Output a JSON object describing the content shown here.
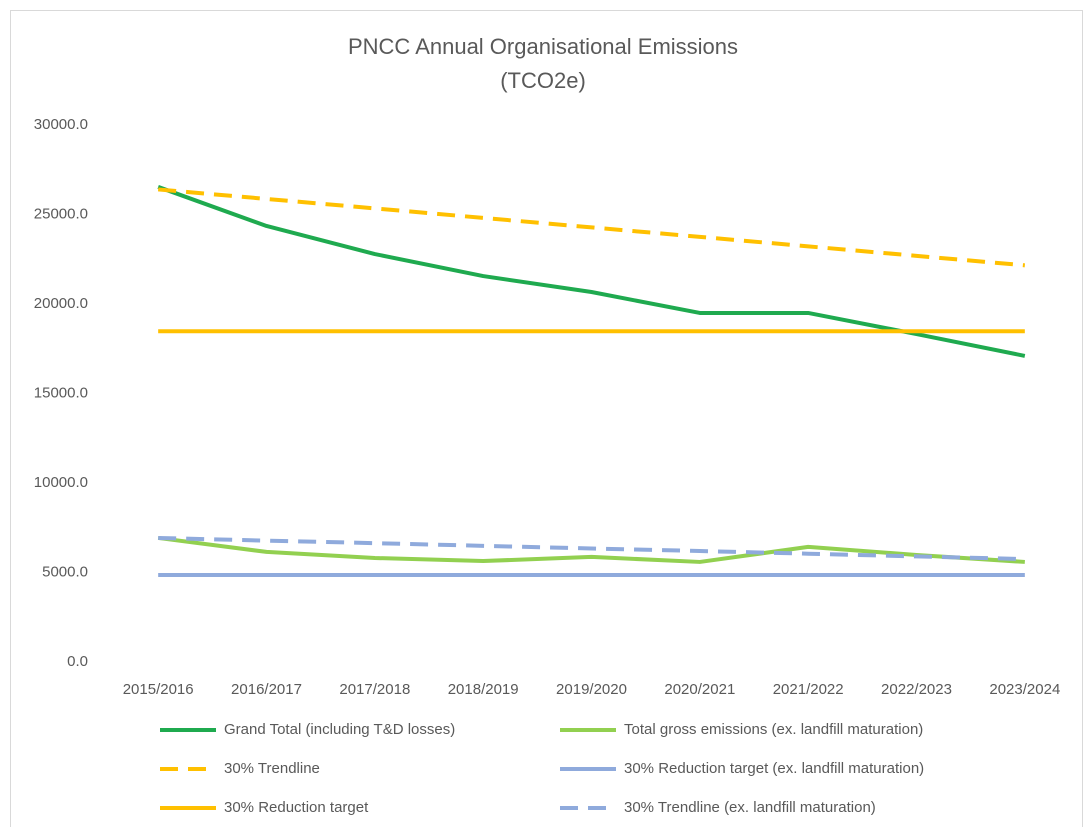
{
  "chart_data": {
    "type": "line",
    "title": [
      "PNCC Annual Organisational Emissions",
      "(TCO2e)"
    ],
    "categories": [
      "2015/2016",
      "2016/2017",
      "2017/2018",
      "2018/2019",
      "2019/2020",
      "2020/2021",
      "2021/2022",
      "2022/2023",
      "2023/2024"
    ],
    "series": [
      {
        "name": "Grand Total (including T&D losses)",
        "color": "#1faa4f",
        "dashed": false,
        "values": [
          26540,
          24360,
          22790,
          21560,
          20670,
          19500,
          19500,
          18320,
          17100
        ]
      },
      {
        "name": "Total gross emissions (ex. landfill maturation)",
        "color": "#92d050",
        "dashed": false,
        "values": [
          6930,
          6150,
          5810,
          5640,
          5870,
          5590,
          6430,
          5980,
          5590
        ]
      },
      {
        "name": "30% Trendline",
        "color": "#ffc000",
        "dashed": true,
        "values": [
          26400,
          25870,
          25340,
          24810,
          24280,
          23750,
          23220,
          22690,
          22160
        ]
      },
      {
        "name": "30% Reduction target (ex. landfill maturation)",
        "color": "#8faadc",
        "dashed": false,
        "values": [
          4860,
          4860,
          4860,
          4860,
          4860,
          4860,
          4860,
          4860,
          4860
        ]
      },
      {
        "name": "30% Reduction target",
        "color": "#ffc000",
        "dashed": false,
        "values": [
          18480,
          18480,
          18480,
          18480,
          18480,
          18480,
          18480,
          18480,
          18480
        ]
      },
      {
        "name": "30% Trendline (ex. landfill maturation)",
        "color": "#8faadc",
        "dashed": true,
        "values": [
          6930,
          6780,
          6640,
          6490,
          6340,
          6200,
          6050,
          5900,
          5750
        ]
      }
    ],
    "ylim": [
      0,
      30000
    ],
    "yticks": [
      {
        "value": 0,
        "label": "0.0"
      },
      {
        "value": 5000,
        "label": "5000.0"
      },
      {
        "value": 10000,
        "label": "10000.0"
      },
      {
        "value": 15000,
        "label": "15000.0"
      },
      {
        "value": 20000,
        "label": "20000.0"
      },
      {
        "value": 25000,
        "label": "25000.0"
      },
      {
        "value": 30000,
        "label": "30000.0"
      }
    ],
    "grid": false,
    "legend": "bottom"
  }
}
